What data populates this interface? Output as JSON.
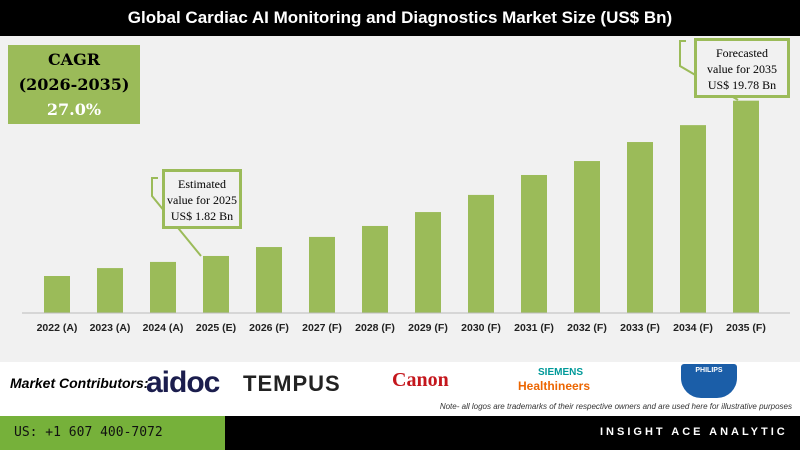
{
  "chart_data": {
    "type": "bar",
    "title": "Global Cardiac AI Monitoring and Diagnostics Market Size (US$ Bn)",
    "categories": [
      "2022 (A)",
      "2023 (A)",
      "2024 (A)",
      "2025 (E)",
      "2026 (F)",
      "2027 (F)",
      "2028 (F)",
      "2029 (F)",
      "2030 (F)",
      "2031 (F)",
      "2032 (F)",
      "2033 (F)",
      "2034 (F)",
      "2035 (F)"
    ],
    "values": [
      0.83,
      1.18,
      1.49,
      1.82,
      2.37,
      3.07,
      3.92,
      5.13,
      6.82,
      9.05,
      10.78,
      13.35,
      15.84,
      19.78
    ],
    "bar_color": "#9bbb59",
    "grid": false,
    "annotations": [
      {
        "lines": [
          "Estimated",
          "value for 2025",
          "US$ 1.82 Bn"
        ]
      },
      {
        "lines": [
          "Forecasted",
          "value for 2035",
          "US$ 19.78 Bn"
        ]
      }
    ]
  },
  "cagr": {
    "label": "CAGR",
    "period": "(2026-2035)",
    "value": "27.0%"
  },
  "contributors": {
    "label": "Market Contributors:",
    "logos": [
      "aidoc",
      "TEMPUS",
      "Canon",
      "SIEMENS",
      "Healthineers",
      "PHILIPS"
    ],
    "note": "Note- all logos are trademarks of their respective owners and are used here for illustrative purposes"
  },
  "footer": {
    "phone": "US: +1 607 400-7072",
    "brand": "INSIGHT ACE ANALYTIC"
  }
}
